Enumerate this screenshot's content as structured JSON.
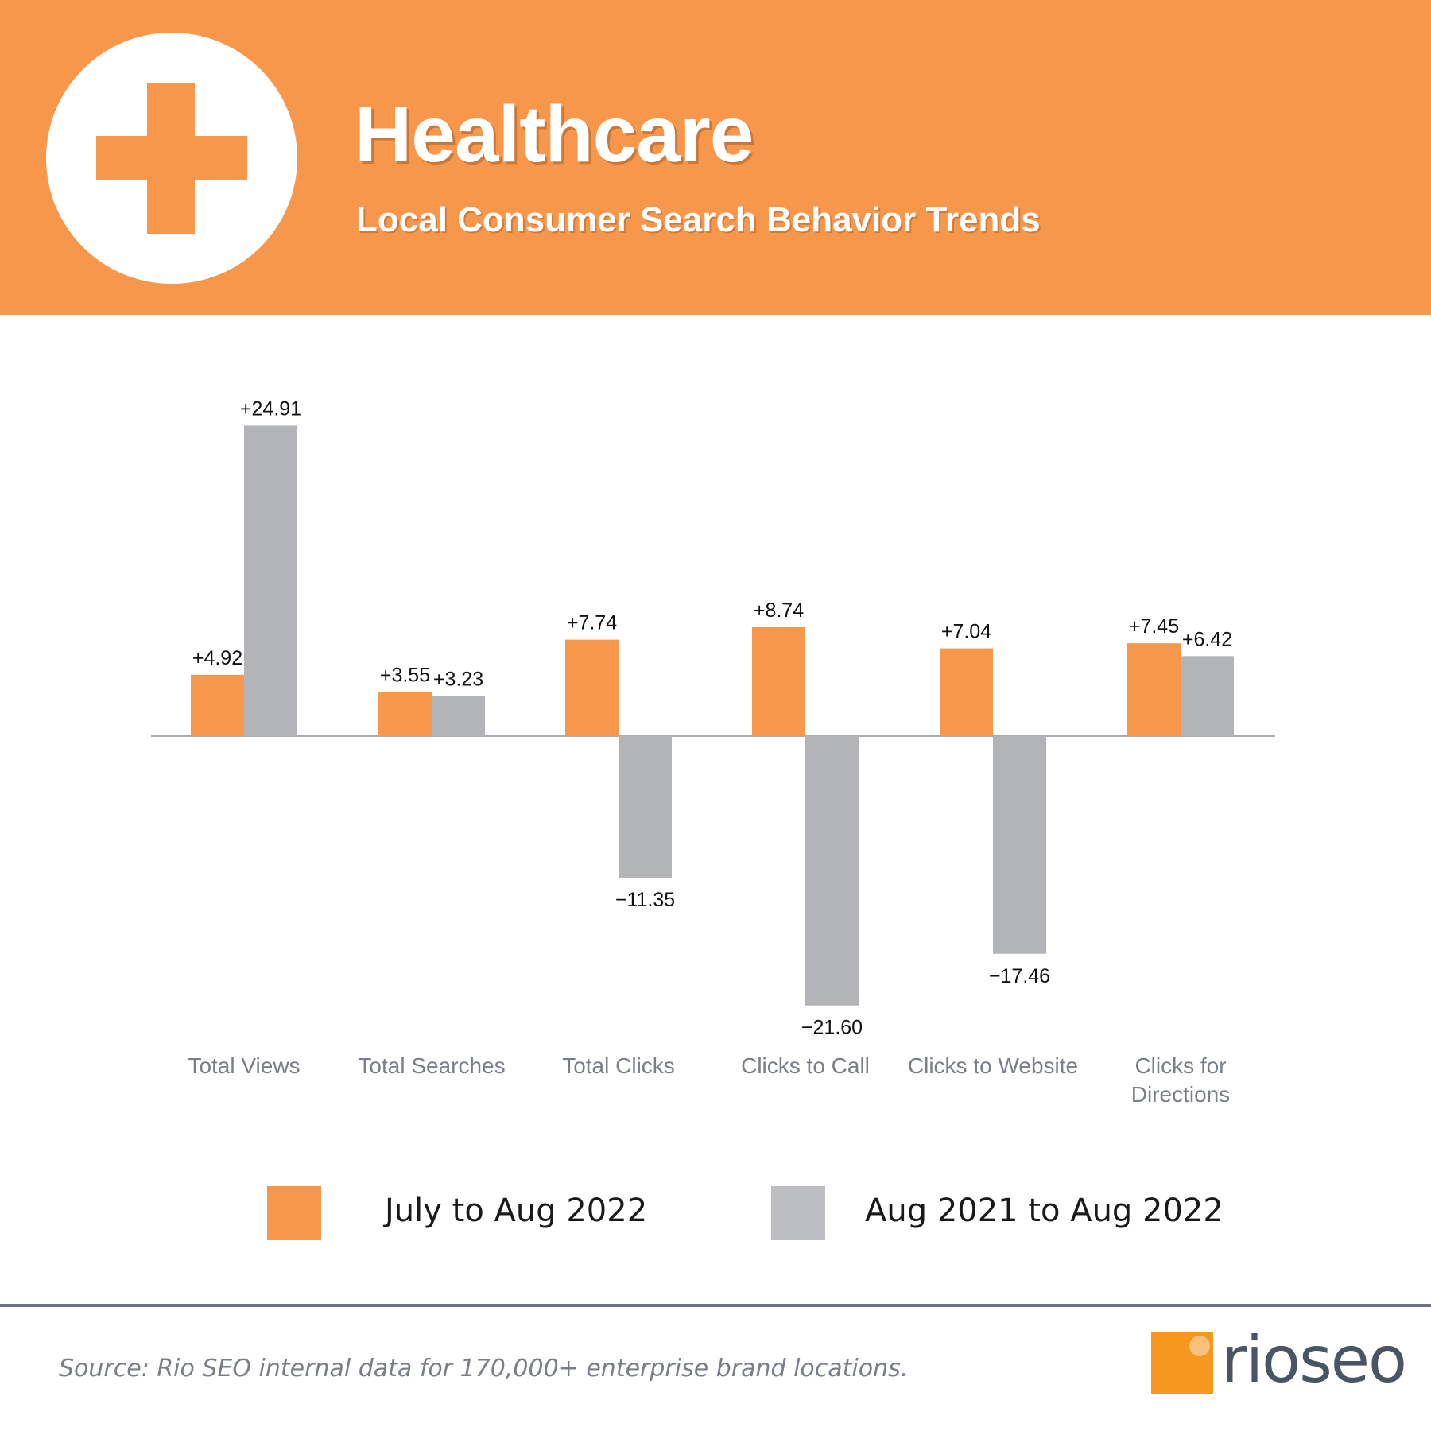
{
  "header": {
    "title": "Healthcare",
    "subtitle": "Local Consumer Search Behavior Trends",
    "icon": "medical-cross-icon"
  },
  "colors": {
    "orange": "#f6974c",
    "gray": "#b3b4b8",
    "axis": "#a9abb0"
  },
  "chart_data": {
    "type": "bar",
    "title": "Healthcare",
    "categories": [
      "Total Views",
      "Total Searches",
      "Total Clicks",
      "Clicks to Call",
      "Clicks to Website",
      "Clicks for Directions"
    ],
    "series": [
      {
        "name": "July to Aug 2022",
        "values": [
          4.92,
          3.55,
          7.74,
          8.74,
          7.04,
          7.45
        ],
        "labels": [
          "+4.92",
          "+3.55",
          "+7.74",
          "+8.74",
          "+7.04",
          "+7.45"
        ]
      },
      {
        "name": "Aug 2021 to Aug 2022",
        "values": [
          24.91,
          3.23,
          -11.35,
          -21.6,
          -17.46,
          6.42
        ],
        "labels": [
          "+24.91",
          "+3.23",
          "−11.35",
          "−21.60",
          "−17.46",
          "+6.42"
        ]
      }
    ],
    "xlabel": "",
    "ylabel": "",
    "ylim": [
      -21.6,
      24.91
    ],
    "grid": false
  },
  "legend": {
    "items": [
      {
        "label": "July to Aug 2022"
      },
      {
        "label": "Aug 2021 to Aug 2022"
      }
    ]
  },
  "footer": {
    "source": "Source: Rio SEO internal data for 170,000+ enterprise brand locations.",
    "brand": "rioseo"
  }
}
